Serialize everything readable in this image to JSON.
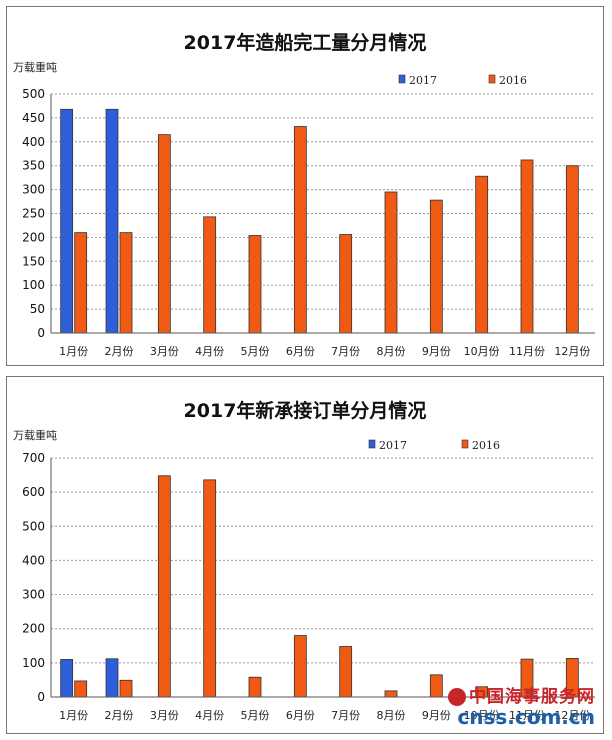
{
  "colors": {
    "series_2017": "#2e5fd8",
    "series_2016": "#f05a14",
    "bar_stroke": "#333333"
  },
  "chart_data": [
    {
      "type": "bar",
      "title": "2017年造船完工量分月情况",
      "ylabel": "万载重吨",
      "xlabel": "",
      "ylim": [
        0,
        500
      ],
      "yticks": [
        0,
        50,
        100,
        150,
        200,
        250,
        300,
        350,
        400,
        450,
        500
      ],
      "grid": true,
      "legend_position": "top-right",
      "categories": [
        "1月份",
        "2月份",
        "3月份",
        "4月份",
        "5月份",
        "6月份",
        "7月份",
        "8月份",
        "9月份",
        "10月份",
        "11月份",
        "12月份"
      ],
      "series": [
        {
          "name": "2017",
          "values": [
            468,
            468,
            null,
            null,
            null,
            null,
            null,
            null,
            null,
            null,
            null,
            null
          ]
        },
        {
          "name": "2016",
          "values": [
            210,
            210,
            415,
            243,
            204,
            432,
            206,
            295,
            278,
            328,
            362,
            350
          ]
        }
      ]
    },
    {
      "type": "bar",
      "title": "2017年新承接订单分月情况",
      "ylabel": "万载重吨",
      "xlabel": "",
      "ylim": [
        0,
        700
      ],
      "yticks": [
        0,
        100,
        200,
        300,
        400,
        500,
        600,
        700
      ],
      "grid": true,
      "legend_position": "top-right",
      "categories": [
        "1月份",
        "2月份",
        "3月份",
        "4月份",
        "5月份",
        "6月份",
        "7月份",
        "8月份",
        "9月份",
        "10月份",
        "11月份",
        "12月份"
      ],
      "series": [
        {
          "name": "2017",
          "values": [
            110,
            112,
            null,
            null,
            null,
            null,
            null,
            null,
            null,
            null,
            null,
            null
          ]
        },
        {
          "name": "2016",
          "values": [
            47,
            49,
            648,
            636,
            58,
            180,
            148,
            18,
            65,
            30,
            111,
            113
          ]
        }
      ]
    }
  ],
  "watermark": {
    "text": "中国海事服务网",
    "url": "cnss.com.cn"
  }
}
